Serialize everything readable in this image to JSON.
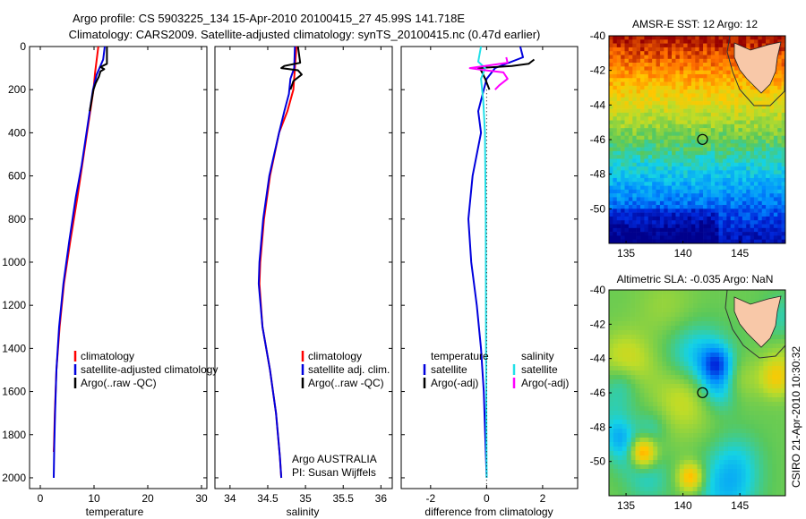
{
  "title": {
    "line1": "Argo profile: CS 5903225_134 15-Apr-2010 20100415_27 45.99S 141.718E",
    "line2": "Climatology: CARS2009. Satellite-adjusted climatology: synTS_20100415.nc (0.47d earlier)"
  },
  "colors": {
    "climatology": "#ff0000",
    "satellite": "#0000dd",
    "argo": "#000000",
    "salinity_satellite": "#22e0e8",
    "salinity_argo": "#ff00ff"
  },
  "panels": {
    "temperature": {
      "xlabel": "temperature",
      "legend": [
        "climatology",
        "satellite-adjusted climatology",
        "Argo(..raw -QC)"
      ]
    },
    "salinity": {
      "xlabel": "salinity",
      "legend": [
        "climatology",
        "satellite adj. clim.",
        "Argo(..raw -QC)"
      ],
      "note1": "Argo AUSTRALIA",
      "note2": "PI: Susan Wijffels"
    },
    "difference": {
      "xlabel": "difference from climatology",
      "temp_heading": "temperature",
      "sal_heading": "salinity",
      "legend_temp": [
        "satellite",
        "Argo(-adj)"
      ],
      "legend_sal": [
        "satellite",
        "Argo(-adj)"
      ]
    },
    "sst": {
      "title": "AMSR-E SST: 12 Argo: 12"
    },
    "sla": {
      "title": "Altimetric SLA: -0.035 Argo: NaN"
    }
  },
  "credit": "CSIRO 21-Apr-2010 10:30:32",
  "chart_data": [
    {
      "type": "line",
      "name": "temperature profile",
      "xlabel": "temperature",
      "ylabel": "",
      "xlim": [
        -2,
        31
      ],
      "ylim": [
        2050,
        0
      ],
      "xticks": [
        0,
        10,
        20,
        30
      ],
      "yticks": [
        0,
        200,
        400,
        600,
        800,
        1000,
        1200,
        1400,
        1600,
        1800,
        2000
      ],
      "series": [
        {
          "name": "climatology",
          "x": [
            10.8,
            10.5,
            10.2,
            9.9,
            9.3,
            8.7,
            8.1,
            6.9,
            5.6,
            4.4,
            3.6,
            3.0,
            2.7,
            2.55,
            2.5
          ],
          "y": [
            0,
            60,
            120,
            200,
            300,
            400,
            500,
            700,
            900,
            1100,
            1300,
            1500,
            1700,
            1850,
            1880
          ]
        },
        {
          "name": "satellite-adjusted climatology",
          "x": [
            12.0,
            11.7,
            10.5,
            9.8,
            9.2,
            8.6,
            7.7,
            6.6,
            5.4,
            4.3,
            3.5,
            3.0,
            2.75,
            2.6,
            2.5
          ],
          "y": [
            0,
            60,
            130,
            200,
            300,
            400,
            550,
            700,
            900,
            1100,
            1300,
            1500,
            1700,
            1850,
            2000
          ]
        },
        {
          "name": "Argo(..raw -QC)",
          "x": [
            12.4,
            12.4,
            11.2,
            11.9,
            11.2,
            10.9,
            10.3,
            9.9,
            9.2
          ],
          "y": [
            0,
            80,
            95,
            105,
            115,
            140,
            170,
            200,
            300
          ]
        }
      ]
    },
    {
      "type": "line",
      "name": "salinity profile",
      "xlabel": "salinity",
      "ylabel": "",
      "xlim": [
        33.8,
        36.15
      ],
      "ylim": [
        2050,
        0
      ],
      "xticks": [
        34,
        34.5,
        35,
        35.5,
        36
      ],
      "xticklabels": [
        "34",
        "34.5",
        "35",
        "35.5",
        "36"
      ],
      "yticks": [
        0,
        200,
        400,
        600,
        800,
        1000,
        1200,
        1400,
        1600,
        1800,
        2000
      ],
      "series": [
        {
          "name": "climatology",
          "x": [
            34.88,
            34.86,
            34.84,
            34.76,
            34.65,
            34.53,
            34.45,
            34.4,
            34.39,
            34.43,
            34.53,
            34.61,
            34.66,
            34.68
          ],
          "y": [
            0,
            100,
            200,
            300,
            400,
            600,
            800,
            1000,
            1100,
            1300,
            1500,
            1700,
            1900,
            2000
          ]
        },
        {
          "name": "satellite adj. clim.",
          "x": [
            34.86,
            34.85,
            34.8,
            34.78,
            34.72,
            34.65,
            34.52,
            34.44,
            34.39,
            34.38,
            34.43,
            34.53,
            34.61,
            34.66,
            34.68
          ],
          "y": [
            0,
            100,
            150,
            220,
            300,
            400,
            600,
            800,
            1000,
            1100,
            1300,
            1500,
            1700,
            1900,
            2000
          ]
        },
        {
          "name": "Argo(..raw -QC)",
          "x": [
            34.9,
            34.93,
            34.72,
            34.68,
            34.9,
            34.95,
            34.84,
            34.8
          ],
          "y": [
            0,
            75,
            90,
            100,
            110,
            130,
            160,
            200
          ]
        }
      ]
    },
    {
      "type": "line",
      "name": "difference from climatology",
      "xlabel": "difference from climatology",
      "ylabel": "",
      "xlim": [
        -3.05,
        3.25
      ],
      "ylim": [
        2050,
        0
      ],
      "xticks": [
        -2,
        0,
        2
      ],
      "yticks": [
        0,
        200,
        400,
        600,
        800,
        1000,
        1200,
        1400,
        1600,
        1800,
        2000
      ],
      "series": [
        {
          "name": "temperature satellite",
          "x": [
            1.2,
            1.3,
            0.3,
            0.0,
            -0.1,
            -0.3,
            -0.2,
            -0.5,
            -0.65,
            -0.55,
            -0.35,
            -0.2,
            -0.1,
            -0.05,
            0.0
          ],
          "y": [
            0,
            50,
            100,
            150,
            200,
            300,
            400,
            600,
            800,
            1000,
            1200,
            1400,
            1600,
            1800,
            2000
          ]
        },
        {
          "name": "temperature Argo(-adj)",
          "x": [
            1.7,
            1.5,
            0.9,
            -0.3,
            -0.2,
            -0.05,
            0.1
          ],
          "y": [
            60,
            80,
            90,
            100,
            110,
            150,
            200
          ]
        },
        {
          "name": "salinity satellite",
          "x": [
            -0.2,
            -0.3,
            -0.05,
            -0.2,
            -0.12,
            -0.06,
            -0.03,
            -0.02,
            0.0
          ],
          "y": [
            0,
            70,
            100,
            150,
            250,
            400,
            800,
            1400,
            2000
          ]
        },
        {
          "name": "salinity Argo(-adj)",
          "x": [
            0.7,
            0.75,
            -0.6,
            -0.05,
            0.6,
            0.75,
            0.45,
            0.3
          ],
          "y": [
            50,
            75,
            100,
            110,
            120,
            150,
            180,
            200
          ]
        }
      ]
    },
    {
      "type": "heatmap",
      "name": "AMSR-E SST map",
      "title": "AMSR-E SST: 12 Argo: 12",
      "xlim": [
        133.5,
        149
      ],
      "ylim": [
        -52,
        -40
      ],
      "xticks": [
        135,
        140,
        145
      ],
      "yticks": [
        -40,
        -42,
        -44,
        -46,
        -48,
        -50
      ],
      "argo_position": {
        "lon": 141.718,
        "lat": -45.99
      }
    },
    {
      "type": "heatmap",
      "name": "Altimetric SLA map",
      "title": "Altimetric SLA: -0.035 Argo: NaN",
      "xlim": [
        133.5,
        149
      ],
      "ylim": [
        -52,
        -40
      ],
      "xticks": [
        135,
        140,
        145
      ],
      "yticks": [
        -40,
        -42,
        -44,
        -46,
        -48,
        -50
      ],
      "argo_position": {
        "lon": 141.718,
        "lat": -45.99
      }
    }
  ]
}
